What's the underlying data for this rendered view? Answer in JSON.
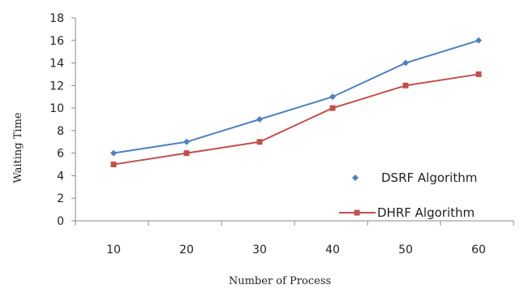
{
  "chart_data": {
    "type": "line",
    "x": [
      10,
      20,
      30,
      40,
      50,
      60
    ],
    "series": [
      {
        "name": "DSRF Algorithm",
        "values": [
          6,
          7,
          9,
          11,
          14,
          16
        ],
        "color": "#4f81bd",
        "marker": "diamond"
      },
      {
        "name": "DHRF Algorithm",
        "values": [
          5,
          6,
          7,
          10,
          12,
          13
        ],
        "color": "#c0504d",
        "marker": "square"
      }
    ],
    "xlabel": "Number of Process",
    "ylabel": "Waiting Time",
    "ylim": [
      0,
      18
    ],
    "yticks": [
      0,
      2,
      4,
      6,
      8,
      10,
      12,
      14,
      16,
      18
    ],
    "grid": false,
    "legend_position": "right"
  }
}
